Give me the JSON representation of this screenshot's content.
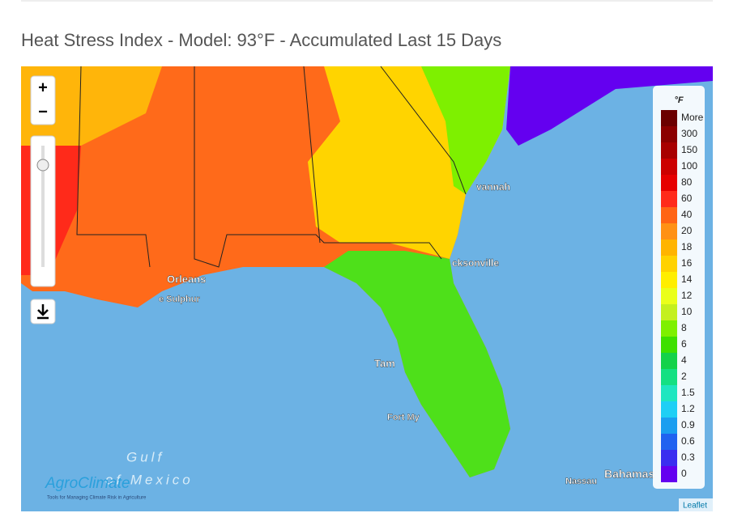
{
  "header": {
    "title": "Heat Stress Index - Model: 93°F - Accumulated Last 15 Days"
  },
  "map": {
    "controls": {
      "zoom_in": "+",
      "zoom_out": "−"
    },
    "places": [
      "vannah",
      "cksonville",
      "Orleans",
      "e Sulphur",
      "Tam",
      "Fort My",
      "Nassau",
      "Bahamas"
    ],
    "water_labels": [
      "Gulf",
      "of Mexico"
    ],
    "logo": {
      "name": "AgroClimate",
      "tagline": "Tools for Managing Climate Risk in Agriculture"
    },
    "attribution": "Leaflet"
  },
  "legend": {
    "unit": "°F",
    "items": [
      {
        "label": "More",
        "color": "#6b0000"
      },
      {
        "label": "300",
        "color": "#8b0000"
      },
      {
        "label": "150",
        "color": "#a80000"
      },
      {
        "label": "100",
        "color": "#cc0000"
      },
      {
        "label": "80",
        "color": "#e60000"
      },
      {
        "label": "60",
        "color": "#ff2a1a"
      },
      {
        "label": "40",
        "color": "#ff6414"
      },
      {
        "label": "20",
        "color": "#ff9114"
      },
      {
        "label": "18",
        "color": "#ffb400"
      },
      {
        "label": "16",
        "color": "#ffd200"
      },
      {
        "label": "14",
        "color": "#ffee00"
      },
      {
        "label": "12",
        "color": "#eaff1a"
      },
      {
        "label": "10",
        "color": "#c4f01e"
      },
      {
        "label": "8",
        "color": "#7ef000"
      },
      {
        "label": "6",
        "color": "#3ee000"
      },
      {
        "label": "4",
        "color": "#14d24a"
      },
      {
        "label": "2",
        "color": "#14e082"
      },
      {
        "label": "1.5",
        "color": "#1ee6c0"
      },
      {
        "label": "1.2",
        "color": "#1ecff5"
      },
      {
        "label": "0.9",
        "color": "#1a9ef0"
      },
      {
        "label": "0.6",
        "color": "#2062f0"
      },
      {
        "label": "0.3",
        "color": "#3a2ef0"
      },
      {
        "label": "0",
        "color": "#6400f0"
      }
    ]
  }
}
